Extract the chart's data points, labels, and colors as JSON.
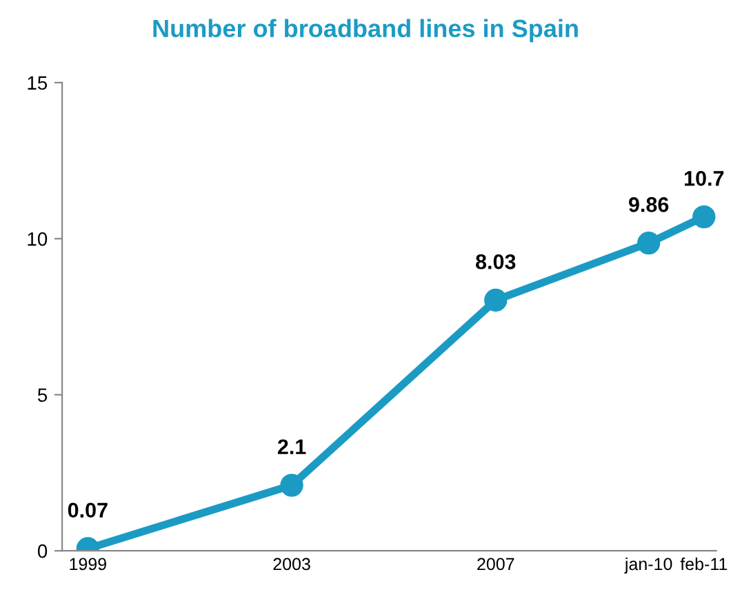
{
  "chart_data": {
    "type": "line",
    "title": "Number of broadband lines in Spain",
    "x": [
      "1999-01",
      "2003-01",
      "2007-01",
      "2010-01",
      "2011-02"
    ],
    "series": [
      {
        "color": "#1b9bc4",
        "values": [
          0.07,
          2.1,
          8.03,
          9.86,
          10.7
        ]
      }
    ],
    "xlim": [
      "1998-07",
      "2011-05"
    ],
    "xticks": [
      {
        "value": "1999-01",
        "label": "1999"
      },
      {
        "value": "2003-01",
        "label": "2003"
      },
      {
        "value": "2007-01",
        "label": "2007"
      },
      {
        "value": "2010-01",
        "label": "jan-10"
      },
      {
        "value": "2011-02",
        "label": "feb-11"
      }
    ],
    "ylim": [
      0,
      15
    ],
    "yticks": [
      0,
      5,
      10,
      15
    ],
    "marker": "circle",
    "line_style": "solid",
    "data_labels": true,
    "grid": false,
    "legend": false
  }
}
